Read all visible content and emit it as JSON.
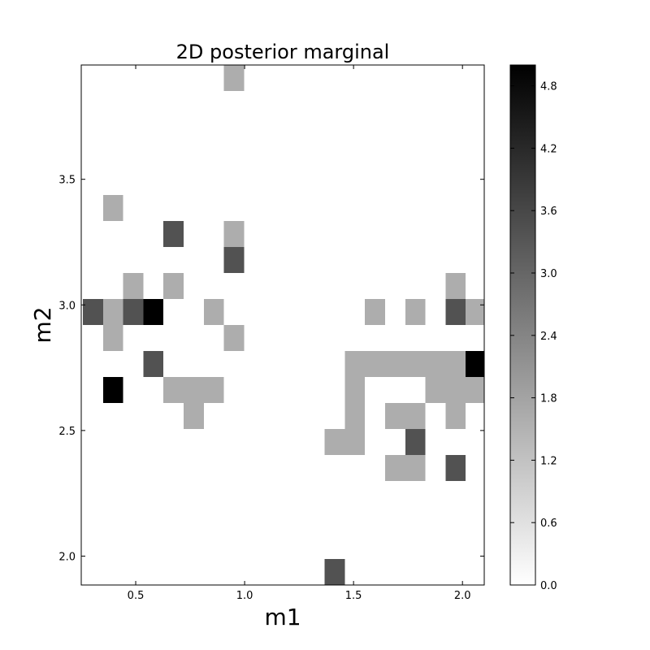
{
  "chart_data": {
    "type": "heatmap",
    "title": "2D posterior marginal",
    "xlabel": "m1",
    "ylabel": "m2",
    "xlim": [
      0.25,
      2.1
    ],
    "ylim": [
      1.885,
      3.955
    ],
    "x_edges_start": 0.2575,
    "y_edges_start": 1.885,
    "cell_width": 0.0925,
    "cell_height": 0.1035,
    "x_ticks": [
      0.5,
      1.0,
      1.5,
      2.0
    ],
    "x_tick_labels": [
      "0.5",
      "1.0",
      "1.5",
      "2.0"
    ],
    "y_ticks": [
      2.0,
      2.5,
      3.0,
      3.5
    ],
    "y_tick_labels": [
      "2.0",
      "2.5",
      "3.0",
      "3.5"
    ],
    "colormap": "gray_r",
    "color_range": [
      0.0,
      5.0
    ],
    "colorbar_ticks": [
      0.0,
      0.6,
      1.2,
      1.8,
      2.4,
      3.0,
      3.6,
      4.2,
      4.8
    ],
    "colorbar_tick_labels": [
      "0.0",
      "0.6",
      "1.2",
      "1.8",
      "2.4",
      "3.0",
      "3.6",
      "4.2",
      "4.8"
    ],
    "cells": [
      {
        "col": 7,
        "row": 19,
        "value": 1.6
      },
      {
        "col": 1,
        "row": 14,
        "value": 1.6
      },
      {
        "col": 4,
        "row": 13,
        "value": 3.4
      },
      {
        "col": 7,
        "row": 13,
        "value": 1.6
      },
      {
        "col": 7,
        "row": 12,
        "value": 3.4
      },
      {
        "col": 2,
        "row": 11,
        "value": 1.6
      },
      {
        "col": 4,
        "row": 11,
        "value": 1.6
      },
      {
        "col": 18,
        "row": 11,
        "value": 1.6
      },
      {
        "col": 0,
        "row": 10,
        "value": 3.4
      },
      {
        "col": 1,
        "row": 10,
        "value": 1.6
      },
      {
        "col": 2,
        "row": 10,
        "value": 3.4
      },
      {
        "col": 3,
        "row": 10,
        "value": 5.0
      },
      {
        "col": 6,
        "row": 10,
        "value": 1.6
      },
      {
        "col": 14,
        "row": 10,
        "value": 1.6
      },
      {
        "col": 16,
        "row": 10,
        "value": 1.6
      },
      {
        "col": 18,
        "row": 10,
        "value": 3.4
      },
      {
        "col": 19,
        "row": 10,
        "value": 1.6
      },
      {
        "col": 1,
        "row": 9,
        "value": 1.6
      },
      {
        "col": 7,
        "row": 9,
        "value": 1.6
      },
      {
        "col": 3,
        "row": 8,
        "value": 3.4
      },
      {
        "col": 13,
        "row": 8,
        "value": 1.6
      },
      {
        "col": 14,
        "row": 8,
        "value": 1.6
      },
      {
        "col": 15,
        "row": 8,
        "value": 1.6
      },
      {
        "col": 16,
        "row": 8,
        "value": 1.6
      },
      {
        "col": 17,
        "row": 8,
        "value": 1.6
      },
      {
        "col": 18,
        "row": 8,
        "value": 1.6
      },
      {
        "col": 19,
        "row": 8,
        "value": 5.0
      },
      {
        "col": 1,
        "row": 7,
        "value": 5.0
      },
      {
        "col": 4,
        "row": 7,
        "value": 1.6
      },
      {
        "col": 5,
        "row": 7,
        "value": 1.6
      },
      {
        "col": 6,
        "row": 7,
        "value": 1.6
      },
      {
        "col": 13,
        "row": 7,
        "value": 1.6
      },
      {
        "col": 17,
        "row": 7,
        "value": 1.6
      },
      {
        "col": 18,
        "row": 7,
        "value": 1.6
      },
      {
        "col": 19,
        "row": 7,
        "value": 1.6
      },
      {
        "col": 5,
        "row": 6,
        "value": 1.6
      },
      {
        "col": 13,
        "row": 6,
        "value": 1.6
      },
      {
        "col": 15,
        "row": 6,
        "value": 1.6
      },
      {
        "col": 16,
        "row": 6,
        "value": 1.6
      },
      {
        "col": 18,
        "row": 6,
        "value": 1.6
      },
      {
        "col": 12,
        "row": 5,
        "value": 1.6
      },
      {
        "col": 13,
        "row": 5,
        "value": 1.6
      },
      {
        "col": 16,
        "row": 5,
        "value": 3.4
      },
      {
        "col": 15,
        "row": 4,
        "value": 1.6
      },
      {
        "col": 16,
        "row": 4,
        "value": 1.6
      },
      {
        "col": 18,
        "row": 4,
        "value": 3.4
      },
      {
        "col": 12,
        "row": 0,
        "value": 3.4
      }
    ]
  }
}
